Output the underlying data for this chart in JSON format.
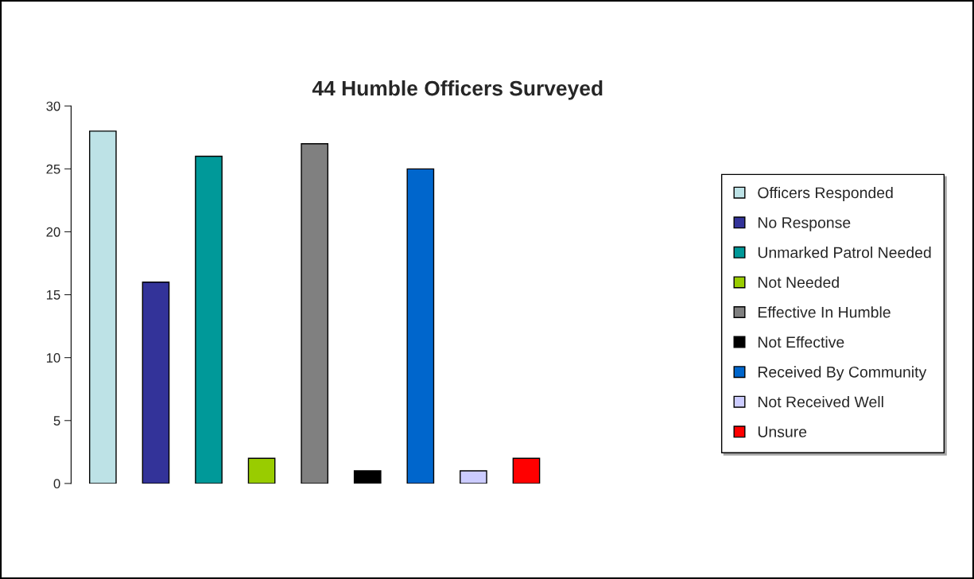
{
  "chart_data": {
    "type": "bar",
    "title": "44 Humble Officers Surveyed",
    "categories": [
      null,
      null,
      null,
      null,
      null,
      null,
      null,
      null,
      null
    ],
    "values": [
      28,
      16,
      26,
      2,
      27,
      1,
      25,
      1,
      2
    ],
    "colors": [
      "#bde2e6",
      "#333399",
      "#009999",
      "#99cc00",
      "#808080",
      "#000000",
      "#0066cc",
      "#ccccff",
      "#ff0000"
    ],
    "annotations": [
      "Officers Responded",
      "No Response",
      "Unmarked Patrol Needed",
      "Not Needed",
      "Effective In Humble",
      "Not Effective",
      "Received By Community",
      "Not Received Well",
      "Unsure"
    ],
    "ylim": [
      0,
      30
    ],
    "yticks": [
      0,
      5,
      10,
      15,
      20,
      25,
      30
    ],
    "grid": false
  }
}
